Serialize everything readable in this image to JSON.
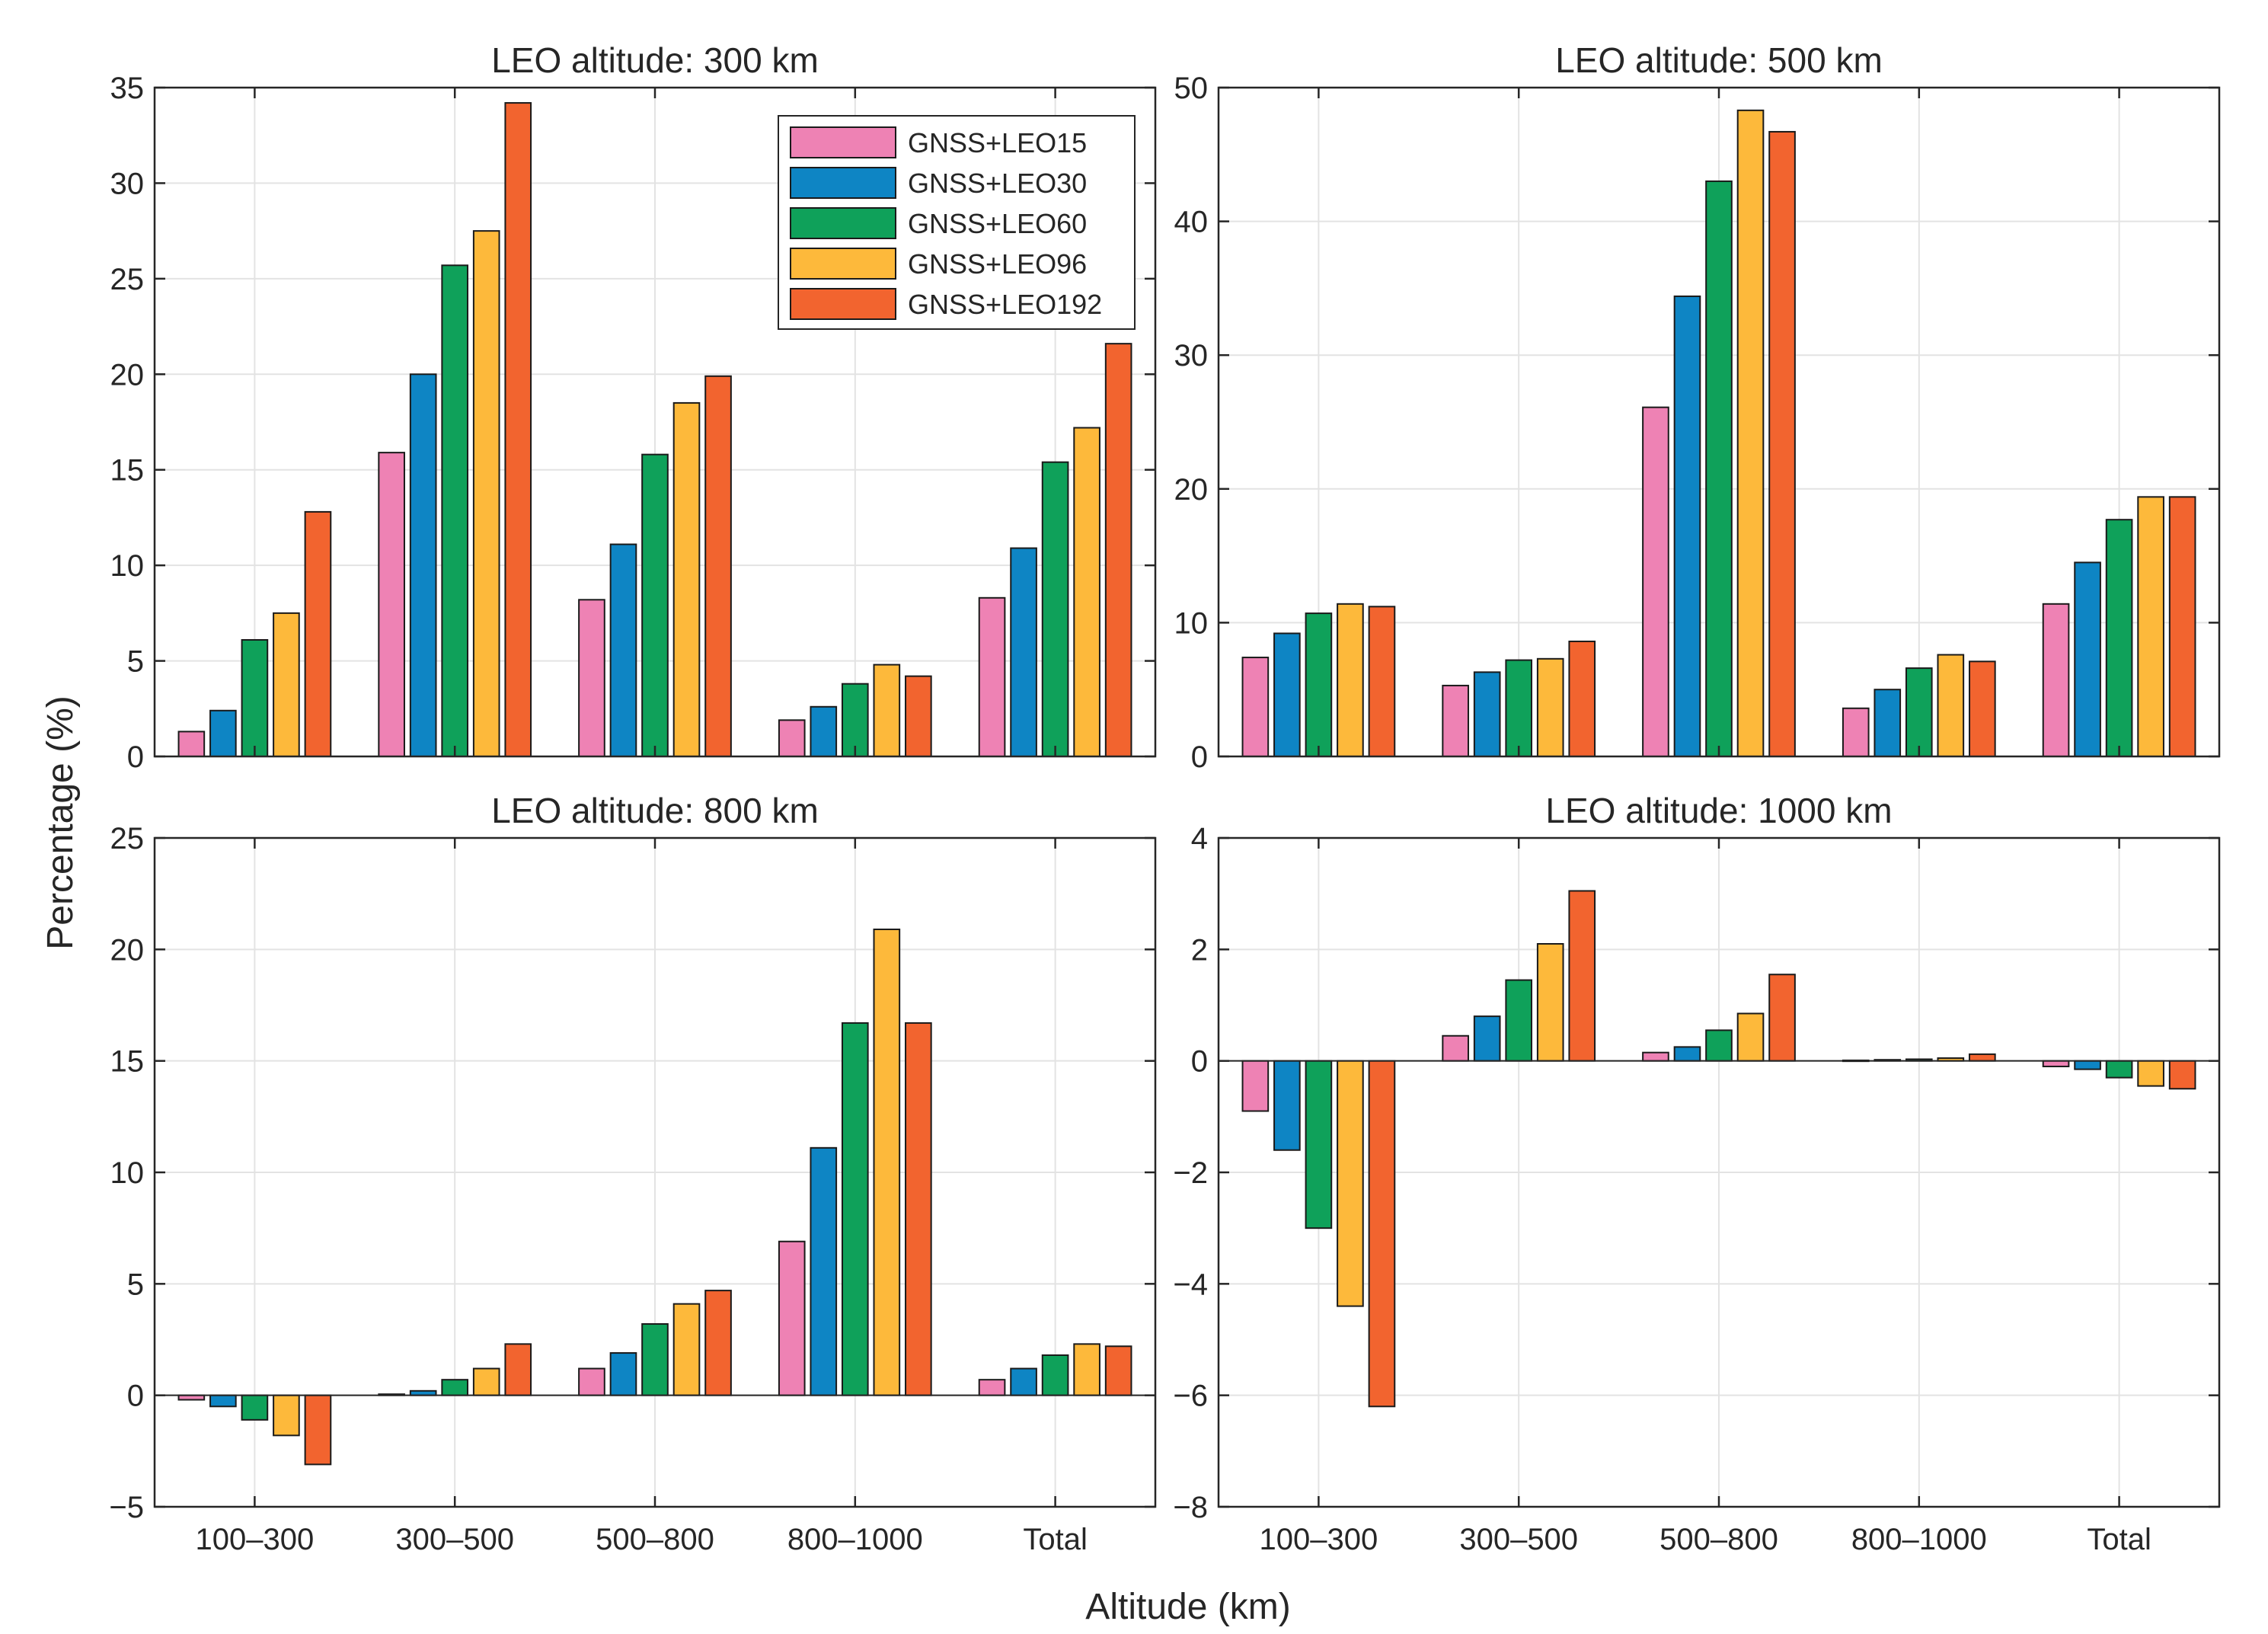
{
  "chart_data": [
    {
      "type": "bar",
      "title": "LEO altitude: 300 km",
      "categories": [
        "100–300",
        "300–500",
        "500–800",
        "800–1000",
        "Total"
      ],
      "ylim": [
        0,
        35
      ],
      "yticks": [
        0,
        5,
        10,
        15,
        20,
        25,
        30,
        35
      ],
      "grid": true,
      "legend": "top-right",
      "series": [
        {
          "name": "GNSS+LEO15",
          "values": [
            1.3,
            15.9,
            8.2,
            1.9,
            8.3
          ]
        },
        {
          "name": "GNSS+LEO30",
          "values": [
            2.4,
            20.0,
            11.1,
            2.6,
            10.9
          ]
        },
        {
          "name": "GNSS+LEO60",
          "values": [
            6.1,
            25.7,
            15.8,
            3.8,
            15.4
          ]
        },
        {
          "name": "GNSS+LEO96",
          "values": [
            7.5,
            27.5,
            18.5,
            4.8,
            17.2
          ]
        },
        {
          "name": "GNSS+LEO192",
          "values": [
            12.8,
            34.2,
            19.9,
            4.2,
            21.6
          ]
        }
      ]
    },
    {
      "type": "bar",
      "title": "LEO altitude: 500 km",
      "categories": [
        "100–300",
        "300–500",
        "500–800",
        "800–1000",
        "Total"
      ],
      "ylim": [
        0,
        50
      ],
      "yticks": [
        0,
        10,
        20,
        30,
        40,
        50
      ],
      "grid": true,
      "series": [
        {
          "name": "GNSS+LEO15",
          "values": [
            7.4,
            5.3,
            26.1,
            3.6,
            11.4
          ]
        },
        {
          "name": "GNSS+LEO30",
          "values": [
            9.2,
            6.3,
            34.4,
            5.0,
            14.5
          ]
        },
        {
          "name": "GNSS+LEO60",
          "values": [
            10.7,
            7.2,
            43.0,
            6.6,
            17.7
          ]
        },
        {
          "name": "GNSS+LEO96",
          "values": [
            11.4,
            7.3,
            48.3,
            7.6,
            19.4
          ]
        },
        {
          "name": "GNSS+LEO192",
          "values": [
            11.2,
            8.6,
            46.7,
            7.1,
            19.4
          ]
        }
      ]
    },
    {
      "type": "bar",
      "title": "LEO altitude: 800 km",
      "categories": [
        "100–300",
        "300–500",
        "500–800",
        "800–1000",
        "Total"
      ],
      "ylim": [
        -5,
        25
      ],
      "yticks": [
        -5,
        0,
        5,
        10,
        15,
        20,
        25
      ],
      "grid": true,
      "series": [
        {
          "name": "GNSS+LEO15",
          "values": [
            -0.2,
            0.05,
            1.2,
            6.9,
            0.7
          ]
        },
        {
          "name": "GNSS+LEO30",
          "values": [
            -0.5,
            0.2,
            1.9,
            11.1,
            1.2
          ]
        },
        {
          "name": "GNSS+LEO60",
          "values": [
            -1.1,
            0.7,
            3.2,
            16.7,
            1.8
          ]
        },
        {
          "name": "GNSS+LEO96",
          "values": [
            -1.8,
            1.2,
            4.1,
            20.9,
            2.3
          ]
        },
        {
          "name": "GNSS+LEO192",
          "values": [
            -3.1,
            2.3,
            4.7,
            16.7,
            2.2
          ]
        }
      ]
    },
    {
      "type": "bar",
      "title": "LEO altitude: 1000 km",
      "categories": [
        "100–300",
        "300–500",
        "500–800",
        "800–1000",
        "Total"
      ],
      "ylim": [
        -8,
        4
      ],
      "yticks": [
        -8,
        -6,
        -4,
        -2,
        0,
        2,
        4
      ],
      "grid": true,
      "series": [
        {
          "name": "GNSS+LEO15",
          "values": [
            -0.9,
            0.45,
            0.15,
            0.01,
            -0.1
          ]
        },
        {
          "name": "GNSS+LEO30",
          "values": [
            -1.6,
            0.8,
            0.25,
            0.02,
            -0.15
          ]
        },
        {
          "name": "GNSS+LEO60",
          "values": [
            -3.0,
            1.45,
            0.55,
            0.03,
            -0.3
          ]
        },
        {
          "name": "GNSS+LEO96",
          "values": [
            -4.4,
            2.1,
            0.85,
            0.05,
            -0.45
          ]
        },
        {
          "name": "GNSS+LEO192",
          "values": [
            -6.2,
            3.05,
            1.55,
            0.12,
            -0.5
          ]
        }
      ]
    }
  ],
  "shared": {
    "xlabel": "Altitude (km)",
    "ylabel": "Percentage (%)",
    "series_colors": [
      "#ee82b4",
      "#0e85c4",
      "#0fa15a",
      "#fdb93b",
      "#f2642f"
    ]
  }
}
